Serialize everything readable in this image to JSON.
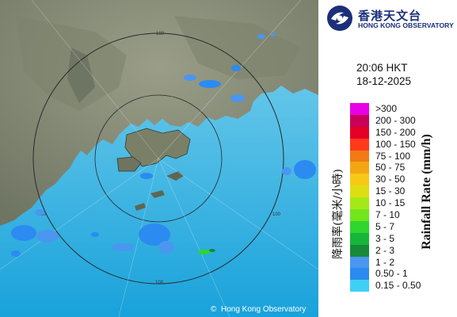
{
  "header": {
    "logo_zh": "香港天文台",
    "logo_en": "HONG KONG OBSERVATORY"
  },
  "timestamp": {
    "time": "20:06 HKT",
    "date": "18-12-2025"
  },
  "legend": {
    "title_en": "Rainfall Rate (mm/h)",
    "title_zh": "降雨率(毫米/小時)",
    "items": [
      {
        "label": ">300",
        "color": "#e800e8"
      },
      {
        "label": "200 - 300",
        "color": "#c8005a"
      },
      {
        "label": "150 - 200",
        "color": "#e60026"
      },
      {
        "label": "100 - 150",
        "color": "#ff3a1a"
      },
      {
        "label": "75 - 100",
        "color": "#f27a14"
      },
      {
        "label": "50 - 75",
        "color": "#f4a612"
      },
      {
        "label": "30 - 50",
        "color": "#f7c917"
      },
      {
        "label": "15 - 30",
        "color": "#dede12"
      },
      {
        "label": "10 - 15",
        "color": "#a5e81a"
      },
      {
        "label": "7 - 10",
        "color": "#73e51c"
      },
      {
        "label": "5 - 7",
        "color": "#2fd62f"
      },
      {
        "label": "3 - 5",
        "color": "#18b53b"
      },
      {
        "label": "2 - 3",
        "color": "#178a3a"
      },
      {
        "label": "1 - 2",
        "color": "#4a96f0"
      },
      {
        "label": "0.50 - 1",
        "color": "#2b8bf0"
      },
      {
        "label": "0.15 - 0.50",
        "color": "#3fd0f5"
      }
    ]
  },
  "map": {
    "range_labels": [
      "100",
      "100",
      "100",
      "100"
    ],
    "copyright": "Hong Kong Observatory",
    "copyright_symbol": "©"
  },
  "colors": {
    "land": "#8a8f7a",
    "sea": "#5fc8e8",
    "sea_deep": "#1aa0d8",
    "brand": "#1b2f7a"
  }
}
